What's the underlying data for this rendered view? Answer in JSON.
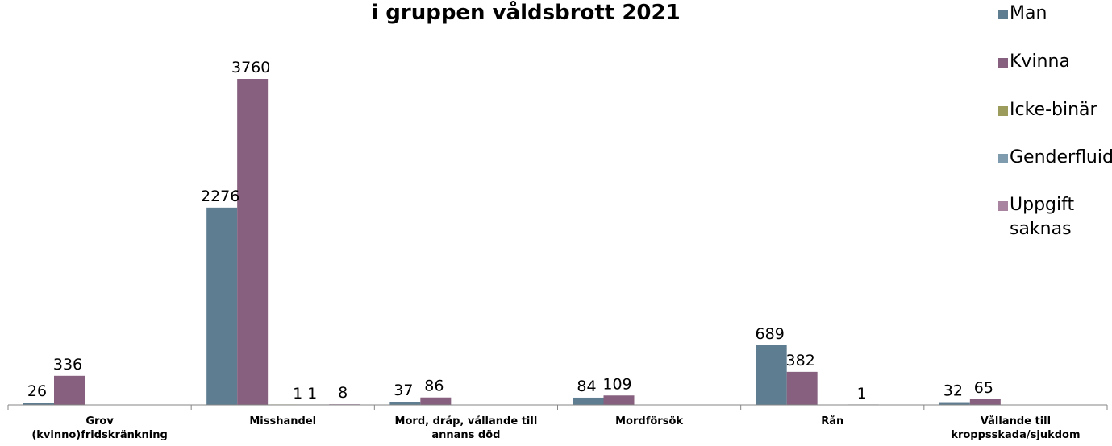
{
  "chart_data": {
    "type": "bar",
    "title": "i gruppen våldsbrott 2021",
    "categories": [
      [
        "Grov",
        "(kvinno)fridskränkning"
      ],
      [
        "Misshandel"
      ],
      [
        "Mord, dråp, vållande till",
        "annans död"
      ],
      [
        "Mordförsök"
      ],
      [
        "Rån"
      ],
      [
        "Vållande till",
        "kroppsskada/sjukdom"
      ]
    ],
    "series": [
      {
        "name": "Man",
        "color": "#5f7d91",
        "values": [
          26,
          2276,
          37,
          84,
          689,
          32
        ]
      },
      {
        "name": "Kvinna",
        "color": "#86607e",
        "values": [
          336,
          3760,
          86,
          109,
          382,
          65
        ]
      },
      {
        "name": "Icke-binär",
        "color": "#9c9c5c",
        "values": [
          0,
          1,
          0,
          0,
          0,
          0
        ]
      },
      {
        "name": "Genderfluid",
        "color": "#7f9cae",
        "values": [
          0,
          1,
          0,
          0,
          1,
          0
        ]
      },
      {
        "name": "Uppgift saknas",
        "legend_lines": [
          "Uppgift",
          "saknas"
        ],
        "color": "#a884a1",
        "values": [
          0,
          8,
          0,
          0,
          0,
          0
        ]
      }
    ],
    "data_labels": [
      [
        "26",
        "336",
        "",
        "",
        ""
      ],
      [
        "2276",
        "3760",
        "1",
        "1",
        "8"
      ],
      [
        "37",
        "86",
        "",
        "",
        ""
      ],
      [
        "84",
        "109",
        "",
        "",
        ""
      ],
      [
        "689",
        "382",
        "",
        "1",
        ""
      ],
      [
        "32",
        "65",
        "",
        "",
        ""
      ]
    ],
    "ylim": [
      0,
      3760
    ],
    "grid": false,
    "legend_position": "right"
  }
}
